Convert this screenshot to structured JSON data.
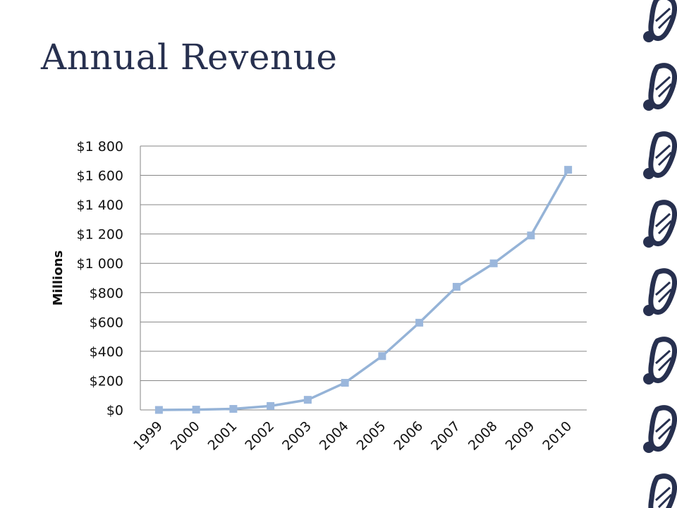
{
  "slide": {
    "title": "Annual Revenue"
  },
  "colors": {
    "title": "#27304f",
    "series": "#95b3d7",
    "marker": "#9bb7dc",
    "gridline": "#868686",
    "decoration": "#27304f"
  },
  "decoration": {
    "icon": "footprint-icon"
  },
  "chart_data": {
    "type": "line",
    "title": "",
    "xlabel": "",
    "ylabel": "Millions",
    "categories": [
      "1999",
      "2000",
      "2001",
      "2002",
      "2003",
      "2004",
      "2005",
      "2006",
      "2007",
      "2008",
      "2009",
      "2010"
    ],
    "series": [
      {
        "values": [
          0,
          2,
          7,
          27,
          69,
          185,
          367,
          595,
          840,
          1000,
          1190,
          1638
        ]
      }
    ],
    "ylim": [
      0,
      1800
    ],
    "yticks": [
      0,
      200,
      400,
      600,
      800,
      1000,
      1200,
      1400,
      1600,
      1800
    ],
    "ytick_labels": [
      "$0",
      "$200",
      "$400",
      "$600",
      "$800",
      "$1 000",
      "$1 200",
      "$1 400",
      "$1 600",
      "$1 800"
    ],
    "grid": true,
    "legend": "none",
    "marker": "square"
  }
}
